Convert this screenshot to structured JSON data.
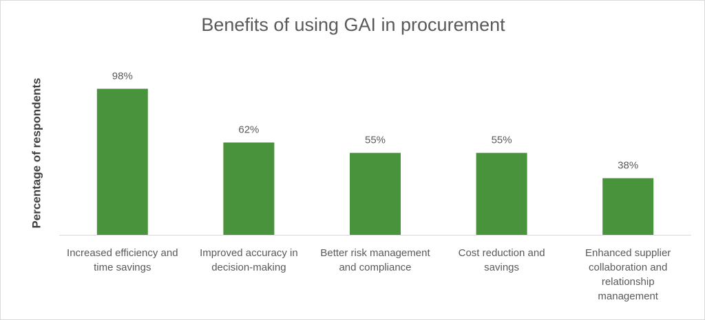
{
  "chart_data": {
    "type": "bar",
    "title": "Benefits of using GAI in procurement",
    "xlabel": "",
    "ylabel": "Percentage of respondents",
    "categories": [
      "Increased efficiency and time savings",
      "Improved accuracy in decision-making",
      "Better risk management and compliance",
      "Cost reduction and savings",
      "Enhanced supplier collaboration and relationship management"
    ],
    "values": [
      98,
      62,
      55,
      55,
      38
    ],
    "data_labels": [
      "98%",
      "62%",
      "55%",
      "55%",
      "38%"
    ],
    "ylim": [
      0,
      100
    ],
    "grid": false,
    "legend": "none",
    "bar_color": "#48933B"
  }
}
